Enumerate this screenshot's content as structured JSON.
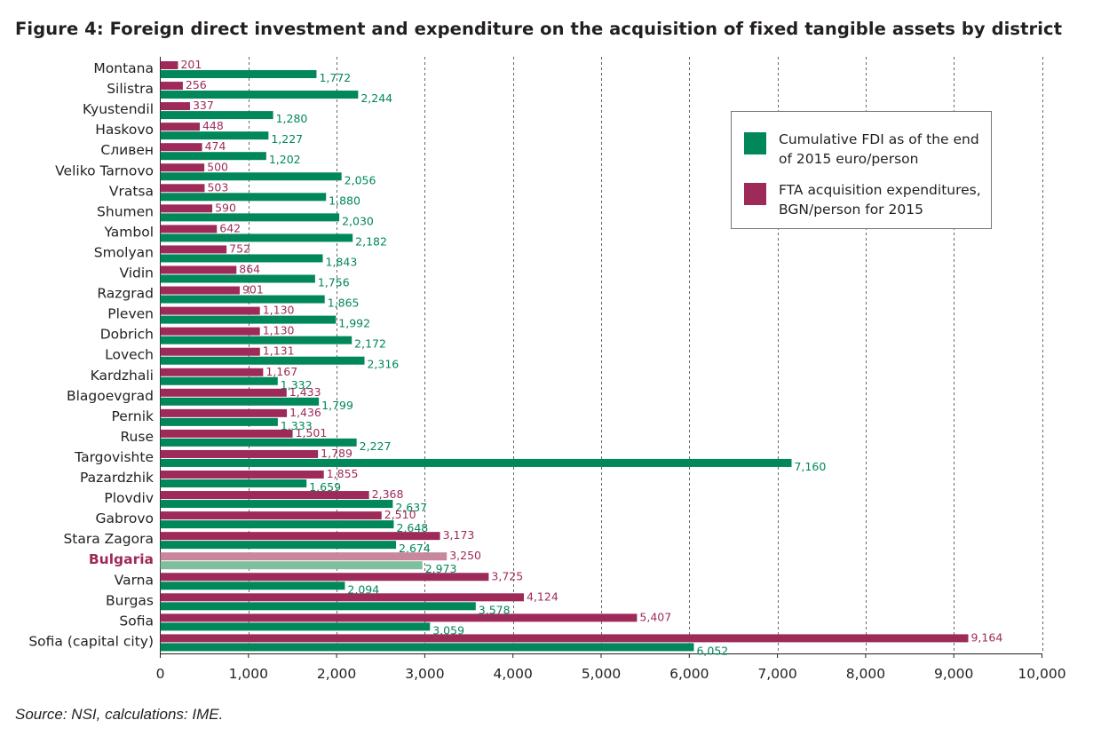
{
  "title": "Figure 4: Foreign direct investment and expenditure on the acquisition of fixed tangible assets by district",
  "source": "Source: NSI, calculations: IME.",
  "legend": {
    "fdi_label": "Cumulative FDI as of the end of 2015 euro/person",
    "fta_label": "FTA acquisition expenditures, BGN/person for 2015"
  },
  "colors": {
    "fdi": "#00875a",
    "fta": "#9e2a5a",
    "fdi_highlight": "#7fbf9d",
    "fta_highlight": "#c9879f",
    "highlight_label": "#9e2a5a"
  },
  "chart_data": {
    "type": "bar",
    "orientation": "horizontal",
    "categories": [
      "Montana",
      "Silistra",
      "Kyustendil",
      "Haskovo",
      "Сливен",
      "Veliko Tarnovo",
      "Vratsa",
      "Shumen",
      "Yambol",
      "Smolyan",
      "Vidin",
      "Razgrad",
      "Pleven",
      "Dobrich",
      "Lovech",
      "Kardzhali",
      "Blagoevgrad",
      "Pernik",
      "Ruse",
      "Targovishte",
      "Pazardzhik",
      "Plovdiv",
      "Gabrovo",
      "Stara Zagora",
      "Bulgaria",
      "Varna",
      "Burgas",
      "Sofia",
      "Sofia (capital city)"
    ],
    "highlight_category": "Bulgaria",
    "series": [
      {
        "name": "FTA acquisition expenditures, BGN/person for 2015",
        "values": [
          201,
          256,
          337,
          448,
          474,
          500,
          503,
          590,
          642,
          752,
          864,
          901,
          1130,
          1130,
          1131,
          1167,
          1433,
          1436,
          1501,
          1789,
          1855,
          2368,
          2510,
          3173,
          3250,
          3725,
          4124,
          5407,
          9164
        ],
        "labels": [
          "201",
          "256",
          "337",
          "448",
          "474",
          "500",
          "503",
          "590",
          "642",
          "752",
          "864",
          "901",
          "1,130",
          "1,130",
          "1,131",
          "1,167",
          "1,433",
          "1,436",
          "1,501",
          "1,789",
          "1,855",
          "2,368",
          "2,510",
          "3,173",
          "3,250",
          "3,725",
          "4,124",
          "5,407",
          "9,164"
        ]
      },
      {
        "name": "Cumulative FDI as of the end of 2015 euro/person",
        "values": [
          1772,
          2244,
          1280,
          1227,
          1202,
          2056,
          1880,
          2030,
          2182,
          1843,
          1756,
          1865,
          1992,
          2172,
          2316,
          1332,
          1799,
          1333,
          2227,
          7160,
          1659,
          2637,
          2648,
          2674,
          2973,
          2094,
          3578,
          3059,
          6052
        ],
        "labels": [
          "1,772",
          "2,244",
          "1,280",
          "1,227",
          "1,202",
          "2,056",
          "1,880",
          "2,030",
          "2,182",
          "1,843",
          "1,756",
          "1,865",
          "1,992",
          "2,172",
          "2,316",
          "1,332",
          "1,799",
          "1,333",
          "2,227",
          "7,160",
          "1,659",
          "2,637",
          "2,648",
          "2,674",
          "2,973",
          "2,094",
          "3,578",
          "3,059",
          "6,052"
        ]
      }
    ],
    "xlim": [
      0,
      10000
    ],
    "xticks": [
      0,
      1000,
      2000,
      3000,
      4000,
      5000,
      6000,
      7000,
      8000,
      9000,
      10000
    ],
    "xtick_labels": [
      "0",
      "1,000",
      "2,000",
      "3,000",
      "4,000",
      "5,000",
      "6,000",
      "7,000",
      "8,000",
      "9,000",
      "10,000"
    ],
    "grid": "vertical dashed",
    "legend_position": "upper-right"
  }
}
